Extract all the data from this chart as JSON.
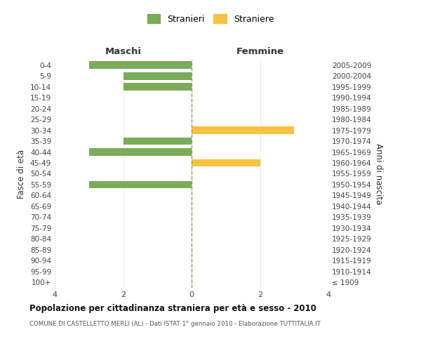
{
  "age_groups": [
    "100+",
    "95-99",
    "90-94",
    "85-89",
    "80-84",
    "75-79",
    "70-74",
    "65-69",
    "60-64",
    "55-59",
    "50-54",
    "45-49",
    "40-44",
    "35-39",
    "30-34",
    "25-29",
    "20-24",
    "15-19",
    "10-14",
    "5-9",
    "0-4"
  ],
  "birth_years": [
    "≤ 1909",
    "1910-1914",
    "1915-1919",
    "1920-1924",
    "1925-1929",
    "1930-1934",
    "1935-1939",
    "1940-1944",
    "1945-1949",
    "1950-1954",
    "1955-1959",
    "1960-1964",
    "1965-1969",
    "1970-1974",
    "1975-1979",
    "1980-1984",
    "1985-1989",
    "1990-1994",
    "1995-1999",
    "2000-2004",
    "2005-2009"
  ],
  "maschi": [
    0,
    0,
    0,
    0,
    0,
    0,
    0,
    0,
    0,
    3,
    0,
    0,
    3,
    2,
    0,
    0,
    0,
    0,
    2,
    2,
    3
  ],
  "femmine": [
    0,
    0,
    0,
    0,
    0,
    0,
    0,
    0,
    0,
    0,
    0,
    2,
    0,
    0,
    3,
    0,
    0,
    0,
    0,
    0,
    0
  ],
  "color_maschi": "#7aab58",
  "color_femmine": "#f5c242",
  "title": "Popolazione per cittadinanza straniera per età e sesso - 2010",
  "subtitle": "COMUNE DI CASTELLETTO MERLI (AL) - Dati ISTAT 1° gennaio 2010 - Elaborazione TUTTITALIA.IT",
  "xlabel_left": "Maschi",
  "xlabel_right": "Femmine",
  "ylabel_left": "Fasce di età",
  "ylabel_right": "Anni di nascita",
  "legend_stranieri": "Stranieri",
  "legend_straniere": "Straniere",
  "xlim": 4,
  "background_color": "#ffffff",
  "grid_color": "#cccccc"
}
